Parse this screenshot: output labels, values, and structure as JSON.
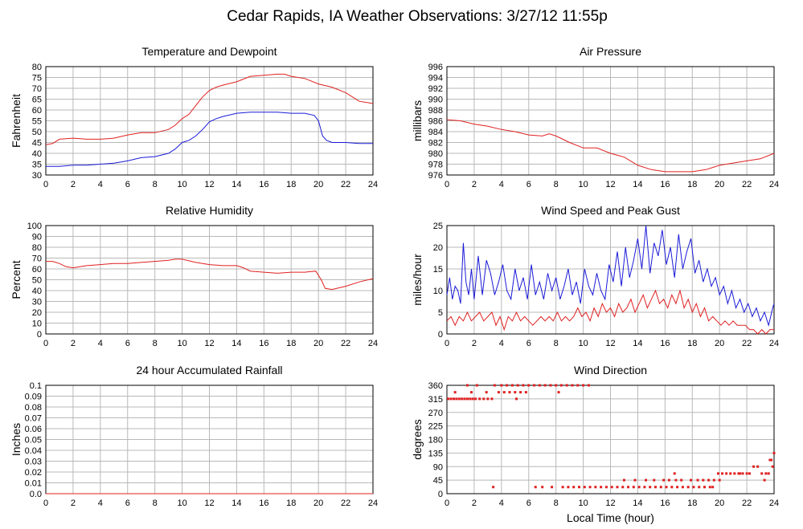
{
  "page_title": "Cedar Rapids, IA Weather Observations: 3/27/12 11:55p",
  "x_axis_label": "Local Time (hour)",
  "colors": {
    "red": "#e02020",
    "blue": "#1a1ad8",
    "grid": "#b8b8b8"
  },
  "chart_data": [
    {
      "id": "temp",
      "type": "line",
      "title": "Temperature and Dewpoint",
      "ylabel": "Fahrenheit",
      "xlim": [
        0,
        24
      ],
      "ylim": [
        30,
        80
      ],
      "xticks": [
        0,
        2,
        4,
        6,
        8,
        10,
        12,
        14,
        16,
        18,
        20,
        22,
        24
      ],
      "yticks": [
        30,
        35,
        40,
        45,
        50,
        55,
        60,
        65,
        70,
        75,
        80
      ],
      "grid": true,
      "series": [
        {
          "color": "red",
          "x": [
            0,
            0.5,
            1,
            2,
            3,
            4,
            5,
            6,
            7,
            8,
            9,
            9.5,
            10,
            10.5,
            11,
            11.5,
            12,
            12.5,
            13,
            14,
            15,
            16,
            17,
            17.5,
            18,
            19,
            20,
            21,
            22,
            23,
            24
          ],
          "y": [
            44,
            44.5,
            46.5,
            47,
            46.5,
            46.5,
            47,
            48.5,
            49.5,
            49.5,
            51,
            53,
            56,
            58,
            62,
            66,
            69,
            70.5,
            71.5,
            73,
            75.5,
            76,
            76.5,
            76.5,
            75.5,
            74.5,
            72,
            70.5,
            68,
            64,
            63
          ]
        },
        {
          "color": "blue",
          "x": [
            0,
            1,
            2,
            3,
            4,
            5,
            6,
            7,
            8,
            9,
            9.5,
            10,
            10.5,
            11,
            11.5,
            12,
            12.5,
            13,
            14,
            15,
            16,
            17,
            18,
            19,
            19.7,
            20,
            20.3,
            20.6,
            21,
            22,
            23,
            24
          ],
          "y": [
            34,
            34,
            34.5,
            34.5,
            35,
            35.5,
            36.5,
            38,
            38.5,
            40,
            42,
            45,
            46,
            48,
            51,
            54.5,
            56,
            57,
            58.5,
            59,
            59,
            59,
            58.5,
            58.5,
            57.5,
            55,
            48,
            46,
            45,
            45,
            44.5,
            44.5
          ]
        }
      ]
    },
    {
      "id": "pressure",
      "type": "line",
      "title": "Air Pressure",
      "ylabel": "millibars",
      "xlim": [
        0,
        24
      ],
      "ylim": [
        976,
        996
      ],
      "xticks": [
        0,
        2,
        4,
        6,
        8,
        10,
        12,
        14,
        16,
        18,
        20,
        22,
        24
      ],
      "yticks": [
        976,
        978,
        980,
        982,
        984,
        986,
        988,
        990,
        992,
        994,
        996
      ],
      "grid": true,
      "series": [
        {
          "color": "red",
          "x": [
            0,
            1,
            2,
            3,
            4,
            5,
            6,
            7,
            7.5,
            8,
            9,
            10,
            11,
            12,
            13,
            14,
            15,
            16,
            17,
            18,
            19,
            20,
            21,
            22,
            23,
            24
          ],
          "y": [
            986.2,
            986,
            985.4,
            985,
            984.4,
            984,
            983.4,
            983.2,
            983.6,
            983.2,
            982,
            981,
            981,
            980,
            979.3,
            977.8,
            977,
            976.6,
            976.6,
            976.6,
            977,
            977.8,
            978.2,
            978.6,
            979,
            980
          ]
        }
      ]
    },
    {
      "id": "rh",
      "type": "line",
      "title": "Relative Humidity",
      "ylabel": "Percent",
      "xlim": [
        0,
        24
      ],
      "ylim": [
        0,
        100
      ],
      "xticks": [
        0,
        2,
        4,
        6,
        8,
        10,
        12,
        14,
        16,
        18,
        20,
        22,
        24
      ],
      "yticks": [
        0,
        10,
        20,
        30,
        40,
        50,
        60,
        70,
        80,
        90,
        100
      ],
      "grid": true,
      "series": [
        {
          "color": "red",
          "x": [
            0,
            0.5,
            1,
            1.5,
            2,
            3,
            4,
            5,
            6,
            7,
            8,
            9,
            9.5,
            10,
            11,
            12,
            13,
            14,
            14.5,
            15,
            16,
            17,
            18,
            19,
            19.8,
            20.2,
            20.5,
            21,
            22,
            23,
            24
          ],
          "y": [
            67,
            67,
            65,
            62,
            61,
            63,
            64,
            65,
            65,
            66,
            67,
            68,
            69,
            69,
            66,
            64,
            63,
            63,
            61,
            58,
            57,
            56,
            57,
            57,
            58,
            50,
            42,
            41,
            44,
            48,
            51
          ]
        }
      ]
    },
    {
      "id": "wind",
      "type": "line",
      "title": "Wind Speed and Peak Gust",
      "ylabel": "miles/hour",
      "xlim": [
        0,
        24
      ],
      "ylim": [
        0,
        25
      ],
      "xticks": [
        0,
        2,
        4,
        6,
        8,
        10,
        12,
        14,
        16,
        18,
        20,
        22,
        24
      ],
      "yticks": [
        0,
        5,
        10,
        15,
        20,
        25
      ],
      "grid": true,
      "series": [
        {
          "color": "blue",
          "x": [
            0,
            0.2,
            0.4,
            0.6,
            0.8,
            1,
            1.2,
            1.4,
            1.6,
            1.8,
            2,
            2.3,
            2.6,
            2.9,
            3.2,
            3.5,
            3.8,
            4.1,
            4.4,
            4.7,
            5,
            5.3,
            5.6,
            5.9,
            6.2,
            6.5,
            6.8,
            7.1,
            7.4,
            7.7,
            8,
            8.3,
            8.6,
            8.9,
            9.2,
            9.5,
            9.8,
            10.1,
            10.4,
            10.7,
            11,
            11.3,
            11.6,
            11.9,
            12.2,
            12.5,
            12.8,
            13.1,
            13.4,
            13.7,
            14,
            14.3,
            14.6,
            14.9,
            15.2,
            15.5,
            15.8,
            16.1,
            16.4,
            16.7,
            17,
            17.3,
            17.6,
            17.9,
            18.2,
            18.5,
            18.8,
            19.1,
            19.4,
            19.7,
            20,
            20.3,
            20.6,
            20.9,
            21.2,
            21.5,
            21.8,
            22.1,
            22.4,
            22.7,
            23,
            23.3,
            23.6,
            23.9,
            24
          ],
          "y": [
            9,
            13,
            8,
            11,
            10,
            7,
            21,
            12,
            9,
            15,
            8,
            18,
            9,
            17,
            14,
            9,
            12,
            16,
            10,
            8,
            15,
            10,
            13,
            8,
            16,
            9,
            12,
            8,
            14,
            10,
            13,
            8,
            11,
            15,
            9,
            12,
            7,
            15,
            11,
            9,
            14,
            10,
            8,
            16,
            12,
            19,
            11,
            20,
            13,
            17,
            22,
            15,
            25,
            14,
            21,
            18,
            24,
            16,
            20,
            13,
            23,
            15,
            19,
            22,
            14,
            17,
            12,
            15,
            11,
            13,
            9,
            11,
            7,
            10,
            6,
            8,
            5,
            7,
            4,
            6,
            3,
            5,
            2,
            6,
            7
          ]
        },
        {
          "color": "red",
          "x": [
            0,
            0.3,
            0.6,
            0.9,
            1.2,
            1.5,
            1.8,
            2.1,
            2.4,
            2.7,
            3,
            3.3,
            3.6,
            3.9,
            4.2,
            4.5,
            4.8,
            5.1,
            5.4,
            5.7,
            6,
            6.3,
            6.6,
            6.9,
            7.2,
            7.5,
            7.8,
            8.1,
            8.4,
            8.7,
            9,
            9.3,
            9.6,
            9.9,
            10.2,
            10.5,
            10.8,
            11.1,
            11.4,
            11.7,
            12,
            12.3,
            12.6,
            12.9,
            13.2,
            13.5,
            13.8,
            14.1,
            14.4,
            14.7,
            15,
            15.3,
            15.6,
            15.9,
            16.2,
            16.5,
            16.8,
            17.1,
            17.4,
            17.7,
            18,
            18.3,
            18.6,
            18.9,
            19.2,
            19.5,
            19.8,
            20.1,
            20.4,
            20.7,
            21,
            21.3,
            21.6,
            21.9,
            22.2,
            22.5,
            22.8,
            23.1,
            23.4,
            23.7,
            24
          ],
          "y": [
            3,
            4,
            2,
            4,
            3,
            5,
            3,
            4,
            5,
            3,
            4,
            5,
            2,
            4,
            1,
            4,
            3,
            5,
            3,
            4,
            3,
            2,
            3,
            4,
            3,
            4,
            3,
            5,
            3,
            4,
            3,
            4,
            6,
            4,
            5,
            3,
            6,
            4,
            7,
            5,
            6,
            4,
            7,
            5,
            6,
            8,
            5,
            7,
            9,
            6,
            8,
            10,
            7,
            8,
            6,
            9,
            7,
            10,
            6,
            8,
            5,
            7,
            4,
            6,
            3,
            4,
            3,
            2,
            3,
            2,
            3,
            2,
            2,
            2,
            1,
            1,
            0,
            1,
            0,
            1,
            1
          ]
        }
      ]
    },
    {
      "id": "rain",
      "type": "line",
      "title": "24 hour Accumulated Rainfall",
      "ylabel": "Inches",
      "xlim": [
        0,
        24
      ],
      "ylim": [
        0,
        0.1
      ],
      "xticks": [
        0,
        2,
        4,
        6,
        8,
        10,
        12,
        14,
        16,
        18,
        20,
        22,
        24
      ],
      "yticks": [
        "0.0",
        "0.01",
        "0.02",
        "0.03",
        "0.04",
        "0.05",
        "0.06",
        "0.07",
        "0.08",
        "0.09",
        "0.1"
      ],
      "grid": true,
      "series": [
        {
          "color": "red",
          "x": [
            0,
            24
          ],
          "y": [
            0,
            0
          ]
        }
      ]
    },
    {
      "id": "direction",
      "type": "scatter",
      "title": "Wind Direction",
      "ylabel": "degrees",
      "xlabel": "Local Time (hour)",
      "xlim": [
        0,
        24
      ],
      "ylim": [
        0,
        360
      ],
      "xticks": [
        0,
        2,
        4,
        6,
        8,
        10,
        12,
        14,
        16,
        18,
        20,
        22,
        24
      ],
      "yticks": [
        0,
        45,
        90,
        135,
        180,
        225,
        270,
        315,
        360
      ],
      "grid": true,
      "series": [
        {
          "color": "red",
          "x": [
            0.1,
            0.3,
            0.5,
            0.7,
            0.9,
            1.1,
            1.3,
            1.5,
            1.7,
            1.9,
            2.1,
            2.4,
            2.7,
            3.0,
            3.3,
            0.6,
            1.8,
            2.9,
            3.8,
            4.2,
            4.6,
            5.0,
            5.4,
            1.5,
            2.2,
            3.5,
            4.0,
            4.4,
            4.8,
            5.2,
            5.6,
            6.0,
            6.4,
            6.8,
            7.2,
            7.6,
            8.0,
            8.4,
            8.8,
            9.2,
            9.6,
            10.0,
            10.4,
            5.1,
            5.8,
            8.2,
            3.4,
            6.5,
            7.0,
            7.7,
            8.5,
            8.9,
            9.3,
            9.7,
            10.1,
            10.5,
            10.9,
            11.3,
            11.7,
            12.1,
            12.5,
            12.9,
            13.3,
            13.7,
            14.1,
            14.5,
            14.9,
            15.3,
            15.7,
            16.1,
            16.5,
            16.9,
            17.3,
            17.7,
            18.1,
            18.5,
            18.9,
            19.3,
            13.0,
            13.8,
            14.6,
            15.2,
            15.9,
            16.3,
            16.8,
            17.2,
            17.9,
            18.4,
            18.8,
            19.2,
            19.6,
            19.9,
            20.2,
            20.5,
            20.8,
            21.1,
            21.4,
            21.7,
            22.0,
            22.2,
            22.5,
            22.8,
            23.1,
            23.4,
            23.6,
            23.8,
            24.0,
            16.7,
            19.5,
            20.0,
            21.5,
            23.3,
            23.7,
            23.9
          ],
          "y": [
            315,
            315,
            315,
            315,
            315,
            315,
            315,
            315,
            315,
            315,
            315,
            315,
            315,
            315,
            315,
            337,
            337,
            337,
            337,
            337,
            337,
            337,
            337,
            360,
            360,
            360,
            360,
            360,
            360,
            360,
            360,
            360,
            360,
            360,
            360,
            360,
            360,
            360,
            360,
            360,
            360,
            360,
            360,
            315,
            337,
            337,
            22,
            22,
            22,
            22,
            22,
            22,
            22,
            22,
            22,
            22,
            22,
            22,
            22,
            22,
            22,
            22,
            22,
            22,
            22,
            22,
            22,
            22,
            22,
            22,
            22,
            22,
            22,
            22,
            22,
            22,
            22,
            22,
            45,
            45,
            45,
            45,
            45,
            45,
            45,
            45,
            45,
            45,
            45,
            45,
            45,
            67,
            67,
            67,
            67,
            67,
            67,
            67,
            67,
            67,
            90,
            90,
            67,
            67,
            67,
            112,
            135,
            67,
            22,
            45,
            67,
            45,
            112,
            90
          ]
        }
      ]
    }
  ]
}
